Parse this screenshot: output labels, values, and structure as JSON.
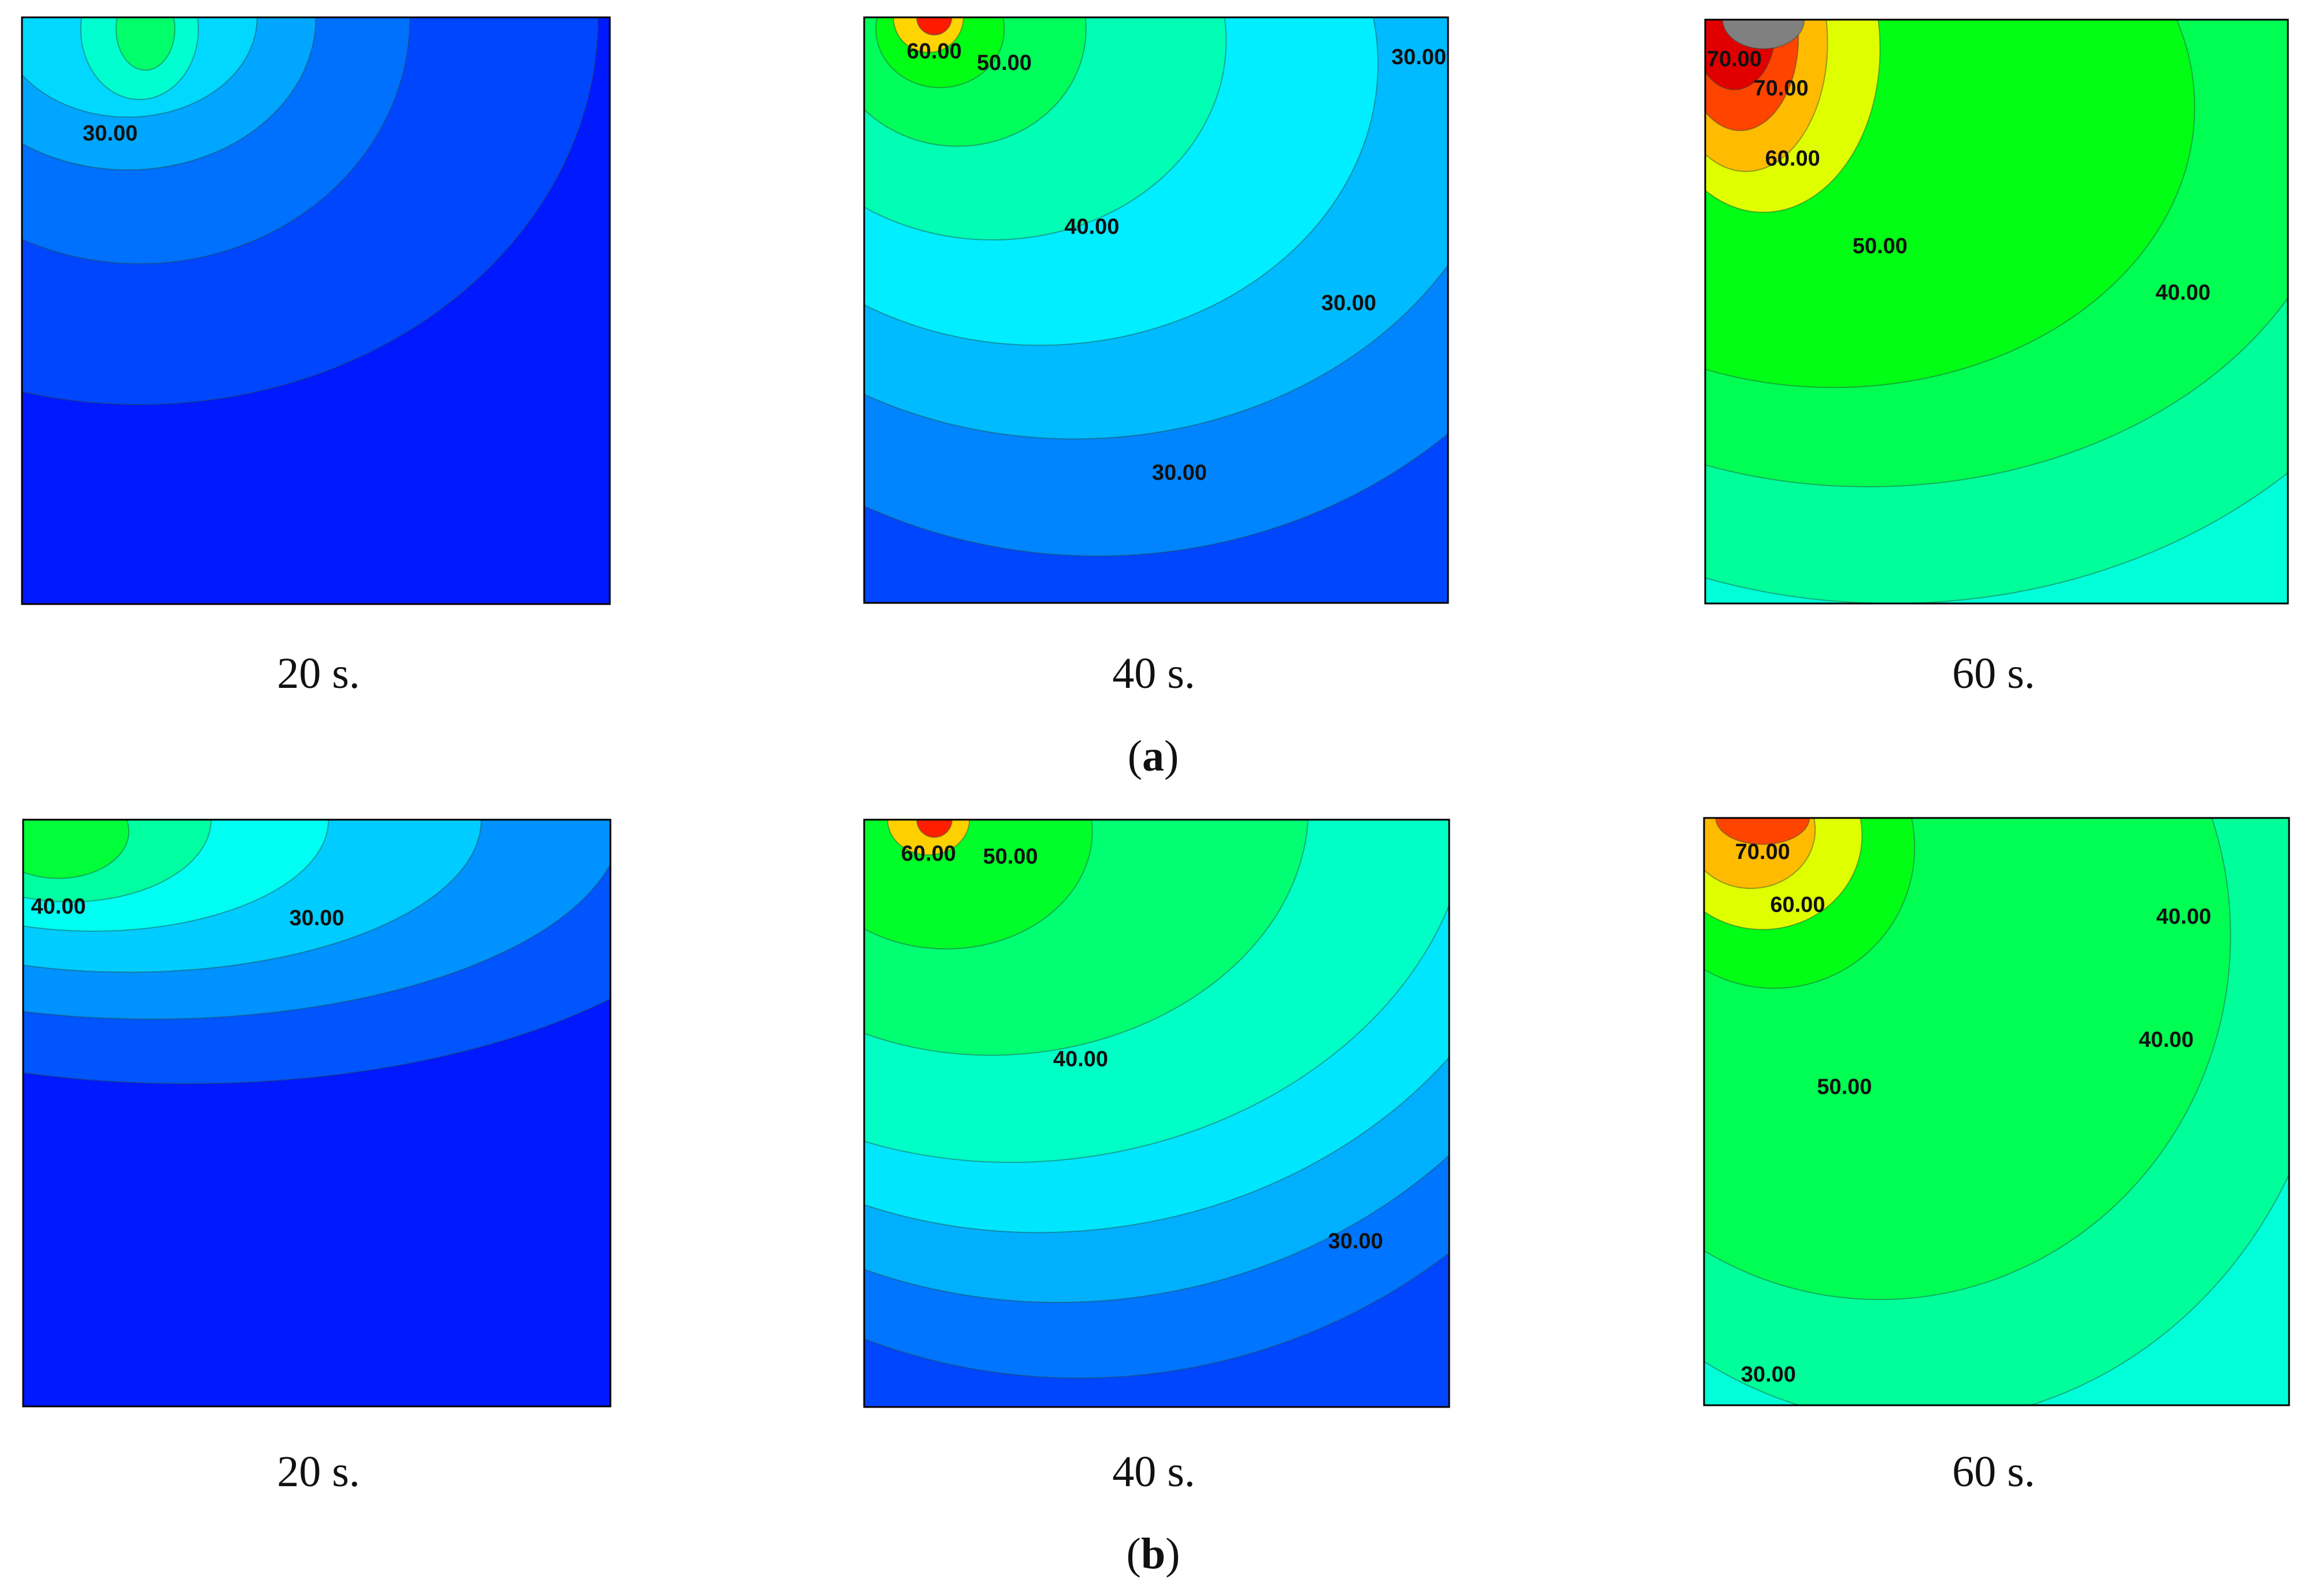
{
  "chart_data": {
    "type": "heatmap",
    "panels": [
      {
        "row": "a",
        "time": "20 s.",
        "contour_labels": [
          "30.00"
        ],
        "palette": [
          "#0019ff",
          "#0046ff",
          "#0070ff",
          "#00a6ff",
          "#00d8ff",
          "#00ffd0",
          "#00ff6b"
        ]
      },
      {
        "row": "a",
        "time": "40 s.",
        "contour_labels": [
          "60.00",
          "50.00",
          "30.00",
          "40.00",
          "30.00",
          "30.00"
        ],
        "palette": [
          "#0046ff",
          "#0085ff",
          "#00bbff",
          "#00eeff",
          "#00ffb4",
          "#00ff5a",
          "#00ff14",
          "#ffd400",
          "#ff1a00"
        ]
      },
      {
        "row": "a",
        "time": "60 s.",
        "contour_labels": [
          "70.00",
          "70.00",
          "60.00",
          "50.00",
          "40.00"
        ],
        "palette": [
          "#00ffd8",
          "#00ff9a",
          "#00ff52",
          "#00ff14",
          "#dfff00",
          "#ffbb00",
          "#ff4400",
          "#e00000",
          "#808080"
        ]
      },
      {
        "row": "b",
        "time": "20 s.",
        "contour_labels": [
          "40.00",
          "30.00"
        ],
        "palette": [
          "#0019ff",
          "#0055ff",
          "#0092ff",
          "#00ccff",
          "#00fff2",
          "#00ffa0",
          "#00ff38"
        ]
      },
      {
        "row": "b",
        "time": "40 s.",
        "contour_labels": [
          "60.00",
          "50.00",
          "40.00",
          "30.00"
        ],
        "palette": [
          "#0046ff",
          "#0075ff",
          "#00b0ff",
          "#00e6ff",
          "#00ffc6",
          "#00ff72",
          "#00ff2a",
          "#ffd000",
          "#ff1f00"
        ]
      },
      {
        "row": "b",
        "time": "60 s.",
        "contour_labels": [
          "70.00",
          "60.00",
          "40.00",
          "40.00",
          "50.00",
          "30.00"
        ],
        "palette": [
          "#00aaff",
          "#00ffd8",
          "#00ff9a",
          "#00ff52",
          "#00ff14",
          "#dfff00",
          "#ffbb00",
          "#ff4400",
          "#808080"
        ]
      }
    ],
    "row_labels": [
      {
        "open": "(",
        "letter": "a",
        "close": ")"
      },
      {
        "open": "(",
        "letter": "b",
        "close": ")"
      }
    ]
  }
}
